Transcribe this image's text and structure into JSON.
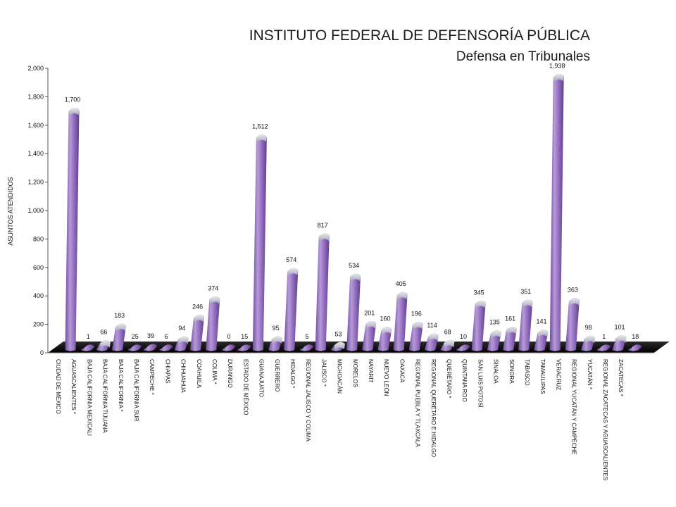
{
  "chart_data": {
    "type": "bar",
    "title": "INSTITUTO FEDERAL DE DEFENSORÍA PÚBLICA",
    "subtitle": "Defensa en Tribunales",
    "xlabel": "",
    "ylabel": "ASUNTOS ATENDIDOS",
    "ylim": [
      0,
      2000
    ],
    "yticks": [
      "0",
      "200",
      "400",
      "600",
      "800",
      "1,000",
      "1,200",
      "1,400",
      "1,600",
      "1,800",
      "2,000"
    ],
    "grid": false,
    "legend": "none",
    "categories": [
      "CIUDAD DE MÉXICO",
      "AGUASCALIENTES *",
      "BAJA CALIFORNIA MEXICALI",
      "BAJA CALIFORNIA TIJUANA",
      "BAJA CALIFORNIA *",
      "BAJA CALIFORNIA SUR",
      "CAMPECHE *",
      "CHIAPAS",
      "CHIHUAHUA",
      "COAHUILA",
      "COLIMA *",
      "DURANGO",
      "ESTADO DE MÉXICO",
      "GUANAJUATO",
      "GUERRERO",
      "HIDALGO *",
      "REGIONAL JALISCO Y COLIMA",
      "JALISCO *",
      "MICHOACÁN",
      "MORELOS",
      "NAYARIT",
      "NUEVO LEÓN",
      "OAXACA",
      "REGIONAL PUEBLA Y TLAXCALA",
      "REGIONAL QUERÉTARO E HIDALGO",
      "QUERÉTARO *",
      "QUINTANA ROO",
      "SAN LUIS POTOSÍ",
      "SINALOA",
      "SONORA",
      "TABASCO",
      "TAMAULIPAS",
      "VERACRUZ",
      "REGIONAL YUCATÁN Y CAMPECHE",
      "YUCATÁN *",
      "REGIONAL ZACATECAS Y AGUASCALIENTES",
      "ZACATECAS *"
    ],
    "values": [
      1700,
      1,
      66,
      183,
      25,
      39,
      6,
      94,
      246,
      374,
      0,
      15,
      1512,
      95,
      574,
      5,
      817,
      53,
      534,
      201,
      160,
      405,
      196,
      114,
      68,
      10,
      345,
      135,
      161,
      351,
      141,
      1938,
      363,
      98,
      1,
      101,
      18
    ],
    "data_labels": [
      "1,700",
      "1",
      "66",
      "183",
      "25",
      "39",
      "6",
      "94",
      "246",
      "374",
      "0",
      "15",
      "1,512",
      "95",
      "574",
      "5",
      "817",
      "53",
      "534",
      "201",
      "160",
      "405",
      "196",
      "114",
      "68",
      "10",
      "345",
      "135",
      "161",
      "351",
      "141",
      "1,938",
      "363",
      "98",
      "1",
      "101",
      "18"
    ],
    "colors": {
      "bar": "#8a63b8",
      "bar_light": "#cbb6e6",
      "bar_tip": "#b9bccb",
      "floor": "#1a1a1a"
    }
  }
}
